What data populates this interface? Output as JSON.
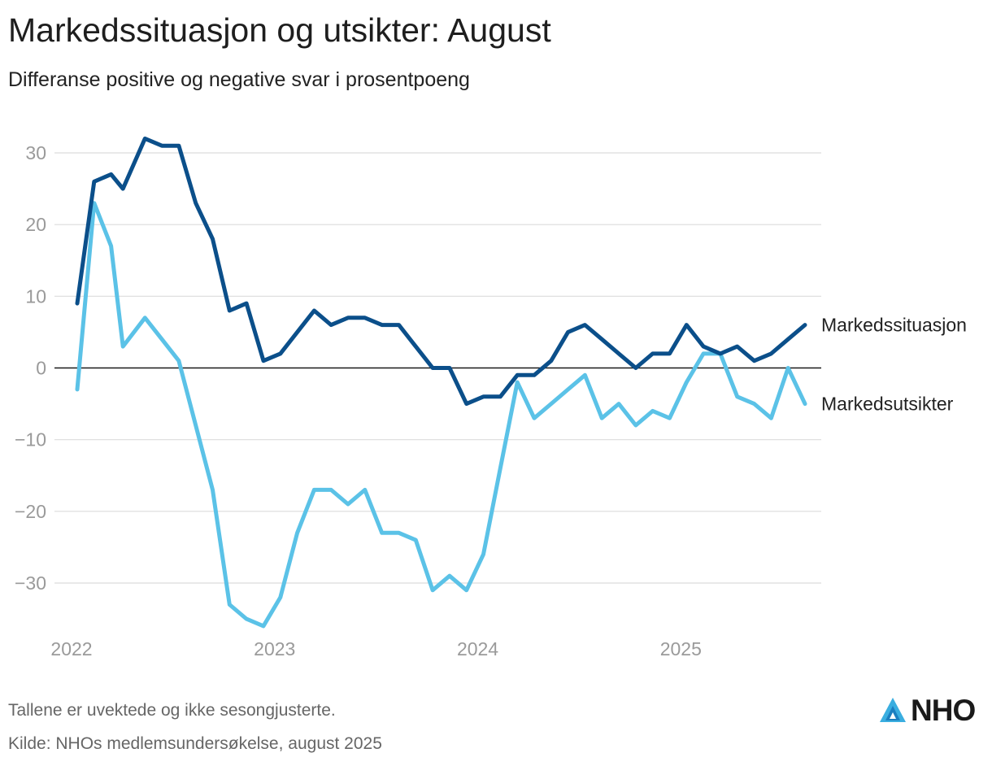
{
  "header": {
    "title": "Markedssituasjon og utsikter: August",
    "subtitle": "Differanse positive og negative svar i prosentpoeng"
  },
  "footer": {
    "note": "Tallene er uvektede og ikke sesongjusterte.",
    "source": "Kilde: NHOs medlemsundersøkelse, august 2025",
    "logo_text": "NHO"
  },
  "colors": {
    "markedssituasjon": "#0b4f8a",
    "markedsutsikter": "#5bc2e7",
    "grid": "#dcdcdc",
    "zero_line": "#1a1a1a",
    "tick_text": "#9a9a9a",
    "logo_accent": "#3aaee0"
  },
  "chart_data": {
    "type": "line",
    "title": "Markedssituasjon og utsikter: August",
    "subtitle": "Differanse positive og negative svar i prosentpoeng",
    "xlabel": "",
    "ylabel": "",
    "x_unit": "month index from January 2022",
    "x_ticks": [
      {
        "label": "2022",
        "x": 0
      },
      {
        "label": "2023",
        "x": 12
      },
      {
        "label": "2024",
        "x": 24
      },
      {
        "label": "2025",
        "x": 36
      }
    ],
    "y_ticks": [
      30,
      20,
      10,
      0,
      -10,
      -20,
      -30
    ],
    "y_tick_labels": [
      "30",
      "20",
      "10",
      "0",
      "−10",
      "−20",
      "−30"
    ],
    "ylim": [
      -37,
      33
    ],
    "xlim": [
      -1.2,
      43.5
    ],
    "grid": true,
    "legend": "direct labels at line ends (right)",
    "series": [
      {
        "name": "Markedssituasjon",
        "label_y": 6,
        "x": [
          0,
          1,
          2,
          2.7,
          4,
          5,
          6,
          7,
          8,
          9,
          10,
          11,
          12,
          13,
          14,
          15,
          16,
          17,
          18,
          19,
          20,
          21,
          22,
          23,
          24,
          25,
          26,
          27,
          28,
          29,
          30,
          31,
          32,
          33,
          34,
          35,
          36,
          37,
          38,
          39,
          40,
          41,
          42,
          43
        ],
        "values": [
          9,
          26,
          27,
          25,
          32,
          31,
          31,
          23,
          18,
          8,
          9,
          1,
          2,
          5,
          8,
          6,
          7,
          7,
          6,
          6,
          3,
          0,
          0,
          -5,
          -4,
          -4,
          -1,
          -1,
          1,
          5,
          6,
          4,
          2,
          0,
          2,
          2,
          6,
          3,
          2,
          3,
          1,
          2,
          4,
          6
        ]
      },
      {
        "name": "Markedsutsikter",
        "label_y": -5,
        "x": [
          0,
          1,
          2,
          2.7,
          4,
          5,
          6,
          7,
          8,
          9,
          10,
          11,
          12,
          13,
          14,
          15,
          16,
          17,
          18,
          19,
          20,
          21,
          22,
          23,
          24,
          25,
          26,
          27,
          28,
          29,
          30,
          31,
          32,
          33,
          34,
          35,
          36,
          37,
          38,
          39,
          40,
          41,
          42,
          43
        ],
        "values": [
          -3,
          23,
          17,
          3,
          7,
          4,
          1,
          -8,
          -17,
          -33,
          -35,
          -36,
          -32,
          -23,
          -17,
          -17,
          -19,
          -17,
          -23,
          -23,
          -24,
          -31,
          -29,
          -31,
          -26,
          -14,
          -2,
          -7,
          -5,
          -3,
          -1,
          -7,
          -5,
          -8,
          -6,
          -7,
          -2,
          2,
          2,
          -4,
          -5,
          -7,
          0,
          -5
        ]
      }
    ]
  }
}
